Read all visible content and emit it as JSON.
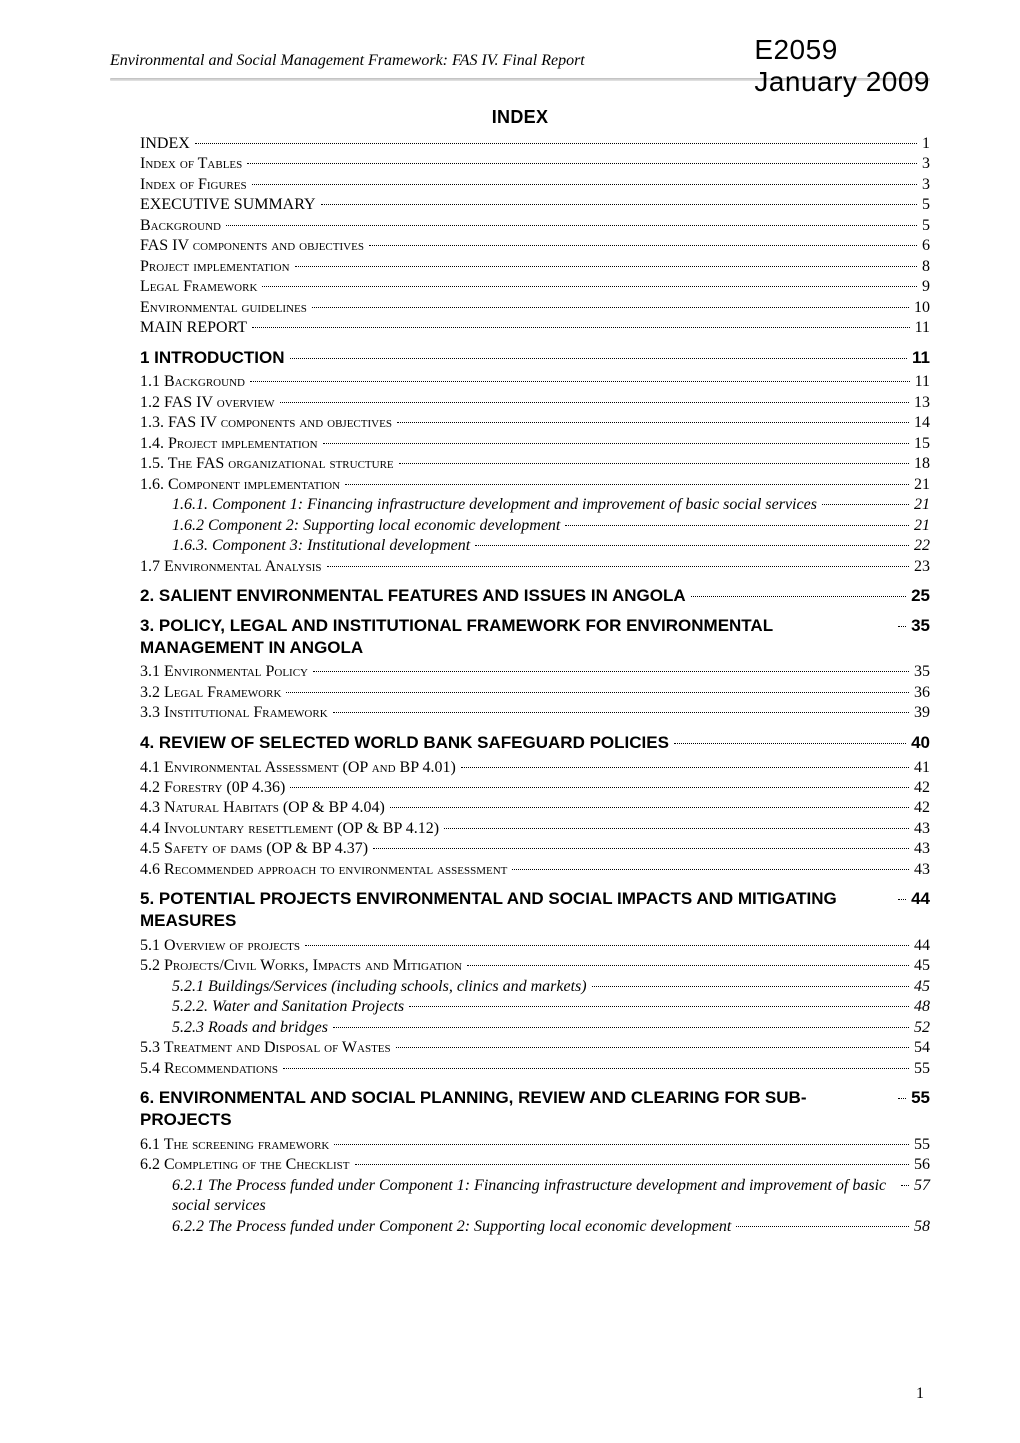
{
  "doc_code": {
    "line1": "E2059",
    "line2": "January 2009"
  },
  "running_header": "Environmental and Social Management Framework: FAS IV. Final Report",
  "index_title": "INDEX",
  "page_number": "1",
  "toc": [
    {
      "label": "INDEX",
      "page": "1",
      "level": 0,
      "style": "plain"
    },
    {
      "label": "Index of Tables",
      "page": "3",
      "level": 0,
      "style": "sc"
    },
    {
      "label": "Index of Figures",
      "page": "3",
      "level": 0,
      "style": "sc"
    },
    {
      "label": "EXECUTIVE SUMMARY",
      "page": "5",
      "level": 0,
      "style": "plain"
    },
    {
      "label": "Background",
      "page": "5",
      "level": 0,
      "style": "sc"
    },
    {
      "label": "FAS IV components and objectives",
      "page": "6",
      "level": 0,
      "style": "sc"
    },
    {
      "label": "Project implementation",
      "page": "8",
      "level": 0,
      "style": "sc"
    },
    {
      "label": "Legal Framework",
      "page": "9",
      "level": 0,
      "style": "sc"
    },
    {
      "label": "Environmental guidelines",
      "page": "10",
      "level": 0,
      "style": "sc"
    },
    {
      "label": "MAIN REPORT",
      "page": "11",
      "level": 0,
      "style": "plain"
    },
    {
      "label": "1      INTRODUCTION",
      "page": "11",
      "level": 0,
      "style": "heading"
    },
    {
      "label": "1.1 Background",
      "page": "11",
      "level": 1,
      "style": "sc"
    },
    {
      "label": "1.2 FAS IV overview",
      "page": "13",
      "level": 1,
      "style": "sc"
    },
    {
      "label": "1.3. FAS IV components and objectives",
      "page": "14",
      "level": 1,
      "style": "sc"
    },
    {
      "label": "1.4. Project implementation",
      "page": "15",
      "level": 1,
      "style": "sc"
    },
    {
      "label": "1.5. The FAS organizational structure",
      "page": "18",
      "level": 1,
      "style": "sc"
    },
    {
      "label": "1.6. Component implementation",
      "page": "21",
      "level": 1,
      "style": "sc"
    },
    {
      "label": "1.6.1. Component 1: Financing infrastructure development and improvement of basic social services",
      "page": "21",
      "level": 2,
      "style": "it",
      "wrap": true
    },
    {
      "label": "1.6.2 Component 2: Supporting local economic development",
      "page": "21",
      "level": 2,
      "style": "it"
    },
    {
      "label": "1.6.3. Component 3: Institutional development",
      "page": "22",
      "level": 2,
      "style": "it"
    },
    {
      "label": "1.7 Environmental Analysis",
      "page": "23",
      "level": 1,
      "style": "sc"
    },
    {
      "label": "2. SALIENT ENVIRONMENTAL FEATURES AND ISSUES IN ANGOLA",
      "page": "25",
      "level": 0,
      "style": "heading"
    },
    {
      "label": "3. POLICY, LEGAL AND INSTITUTIONAL FRAMEWORK FOR ENVIRONMENTAL MANAGEMENT IN ANGOLA",
      "page": "35",
      "level": 0,
      "style": "heading",
      "wrap": true
    },
    {
      "label": "3.1 Environmental Policy",
      "page": "35",
      "level": 1,
      "style": "sc"
    },
    {
      "label": "3.2 Legal Framework",
      "page": "36",
      "level": 1,
      "style": "sc"
    },
    {
      "label": "3.3 Institutional Framework",
      "page": "39",
      "level": 1,
      "style": "sc"
    },
    {
      "label": "4. REVIEW OF SELECTED WORLD BANK SAFEGUARD POLICIES",
      "page": "40",
      "level": 0,
      "style": "heading"
    },
    {
      "label": "4.1 Environmental Assessment (OP and BP 4.01)",
      "page": "41",
      "level": 1,
      "style": "sc"
    },
    {
      "label": "4.2 Forestry (0P 4.36)",
      "page": "42",
      "level": 1,
      "style": "sc"
    },
    {
      "label": "4.3 Natural Habitats (OP & BP 4.04)",
      "page": "42",
      "level": 1,
      "style": "sc"
    },
    {
      "label": "4.4 Involuntary resettlement (OP & BP 4.12)",
      "page": "43",
      "level": 1,
      "style": "sc"
    },
    {
      "label": "4.5 Safety of dams (OP & BP 4.37)",
      "page": "43",
      "level": 1,
      "style": "sc"
    },
    {
      "label": "4.6 Recommended approach to environmental assessment",
      "page": "43",
      "level": 1,
      "style": "sc"
    },
    {
      "label": "5. POTENTIAL PROJECTS ENVIRONMENTAL AND SOCIAL IMPACTS AND MITIGATING MEASURES",
      "page": "44",
      "level": 0,
      "style": "heading",
      "wrap": true
    },
    {
      "label": "5.1 Overview of projects",
      "page": "44",
      "level": 1,
      "style": "sc"
    },
    {
      "label": "5.2 Projects/Civil Works, Impacts and Mitigation",
      "page": "45",
      "level": 1,
      "style": "sc"
    },
    {
      "label": "5.2.1 Buildings/Services (including schools, clinics and markets)",
      "page": "45",
      "level": 2,
      "style": "it"
    },
    {
      "label": "5.2.2. Water and Sanitation Projects",
      "page": "48",
      "level": 2,
      "style": "it"
    },
    {
      "label": "5.2.3 Roads and bridges",
      "page": "52",
      "level": 2,
      "style": "it"
    },
    {
      "label": "5.3 Treatment and Disposal of Wastes",
      "page": "54",
      "level": 1,
      "style": "sc"
    },
    {
      "label": "5.4 Recommendations",
      "page": "55",
      "level": 1,
      "style": "sc"
    },
    {
      "label": "6. ENVIRONMENTAL AND SOCIAL PLANNING, REVIEW AND CLEARING FOR SUB-PROJECTS",
      "page": "55",
      "level": 0,
      "style": "heading",
      "wrap": true
    },
    {
      "label": "6.1 The screening framework",
      "page": "55",
      "level": 1,
      "style": "sc"
    },
    {
      "label": "6.2 Completing of the Checklist",
      "page": "56",
      "level": 1,
      "style": "sc"
    },
    {
      "label": "6.2.1 The Process funded under Component 1: Financing infrastructure development and improvement of basic social services",
      "page": "57",
      "level": 2,
      "style": "it",
      "wrap": true
    },
    {
      "label": "6.2.2 The Process funded under Component 2: Supporting local economic development",
      "page": "58",
      "level": 2,
      "style": "it"
    }
  ],
  "colors": {
    "text": "#000000",
    "background": "#ffffff",
    "rule": "#c9c9c9"
  },
  "fonts": {
    "body": "Times New Roman",
    "headings": "Arial"
  }
}
